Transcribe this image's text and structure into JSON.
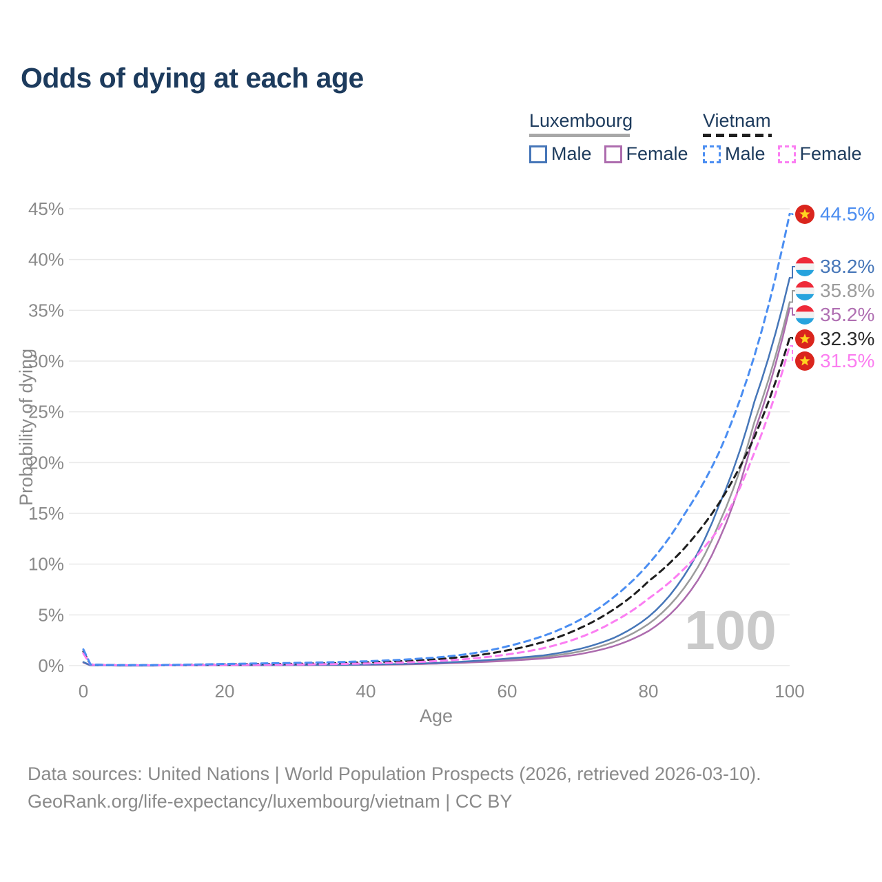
{
  "title": "Odds of dying at each age",
  "legend": {
    "groups": [
      {
        "name": "Luxembourg",
        "line_style": "solid",
        "underline_color": "#a8a8a8",
        "items": [
          {
            "label": "Male",
            "color": "#4676b8"
          },
          {
            "label": "Female",
            "color": "#ad6cae"
          }
        ]
      },
      {
        "name": "Vietnam",
        "line_style": "dashed",
        "underline_color": "#1f1f1f",
        "items": [
          {
            "label": "Male",
            "color": "#4b8ef2"
          },
          {
            "label": "Female",
            "color": "#fb7ef2"
          }
        ]
      }
    ]
  },
  "chart_data": {
    "type": "line",
    "title": "Odds of dying at each age",
    "xlabel": "Age",
    "ylabel": "Probability of dying",
    "xlim": [
      0,
      100
    ],
    "ylim": [
      0,
      45
    ],
    "grid": "horizontal",
    "legend_position": "top-right",
    "x_tick_labels": [
      "0",
      "20",
      "40",
      "60",
      "80",
      "100"
    ],
    "x_tick_values": [
      0,
      20,
      40,
      60,
      80,
      100
    ],
    "y_tick_labels": [
      "0%",
      "5%",
      "10%",
      "15%",
      "20%",
      "25%",
      "30%",
      "35%",
      "40%",
      "45%"
    ],
    "y_tick_values": [
      0,
      5,
      10,
      15,
      20,
      25,
      30,
      35,
      40,
      45
    ],
    "age_cursor_annotation": "100",
    "x": [
      0,
      1,
      5,
      10,
      15,
      20,
      25,
      30,
      35,
      40,
      45,
      50,
      55,
      60,
      65,
      70,
      75,
      80,
      85,
      90,
      95,
      100
    ],
    "series": [
      {
        "name": "Luxembourg (both sexes)",
        "country": "Luxembourg",
        "sex": "all",
        "color": "#9b9b9b",
        "dash": "solid",
        "width": 2.5,
        "values": [
          0.32,
          0.025,
          0.01,
          0.01,
          0.025,
          0.04,
          0.045,
          0.055,
          0.065,
          0.095,
          0.145,
          0.235,
          0.385,
          0.59,
          0.85,
          1.35,
          2.3,
          4.1,
          7.6,
          14.0,
          24.0,
          35.8
        ],
        "end_label": "35.8%",
        "end_value": 35.8,
        "flag": "luxembourg",
        "label_color": "#9b9b9b"
      },
      {
        "name": "Luxembourg Female",
        "country": "Luxembourg",
        "sex": "female",
        "color": "#ad6cae",
        "dash": "solid",
        "width": 2.5,
        "values": [
          0.3,
          0.02,
          0.01,
          0.01,
          0.02,
          0.03,
          0.03,
          0.04,
          0.05,
          0.08,
          0.12,
          0.2,
          0.32,
          0.48,
          0.7,
          1.1,
          1.9,
          3.4,
          6.5,
          12.4,
          23.0,
          35.2
        ],
        "end_label": "35.2%",
        "end_value": 35.2,
        "flag": "luxembourg",
        "label_color": "#b06fb2"
      },
      {
        "name": "Luxembourg Male",
        "country": "Luxembourg",
        "sex": "male",
        "color": "#4676b8",
        "dash": "solid",
        "width": 2.5,
        "values": [
          0.35,
          0.03,
          0.01,
          0.01,
          0.03,
          0.05,
          0.06,
          0.07,
          0.08,
          0.11,
          0.17,
          0.27,
          0.45,
          0.7,
          1.0,
          1.6,
          2.7,
          4.8,
          8.8,
          15.8,
          26.0,
          38.2
        ],
        "end_label": "38.2%",
        "end_value": 38.2,
        "flag": "luxembourg",
        "label_color": "#4676b8"
      },
      {
        "name": "Vietnam (both sexes)",
        "country": "Vietnam",
        "sex": "all",
        "color": "#1f1f1f",
        "dash": "dashed",
        "width": 3,
        "values": [
          1.4,
          0.1,
          0.045,
          0.04,
          0.08,
          0.12,
          0.16,
          0.19,
          0.24,
          0.32,
          0.44,
          0.63,
          0.95,
          1.5,
          2.3,
          3.6,
          5.5,
          8.3,
          11.5,
          16.0,
          22.5,
          32.3
        ],
        "end_label": "32.3%",
        "end_value": 32.3,
        "flag": "vietnam",
        "label_color": "#2b2b2b"
      },
      {
        "name": "Vietnam Female",
        "country": "Vietnam",
        "sex": "female",
        "color": "#fb7ef2",
        "dash": "dashed",
        "width": 3,
        "values": [
          1.2,
          0.09,
          0.04,
          0.03,
          0.05,
          0.07,
          0.09,
          0.11,
          0.15,
          0.21,
          0.3,
          0.45,
          0.7,
          1.1,
          1.7,
          2.7,
          4.3,
          6.6,
          9.5,
          13.5,
          21.0,
          31.5
        ],
        "end_label": "31.5%",
        "end_value": 31.5,
        "flag": "vietnam",
        "label_color": "#fb7df0"
      },
      {
        "name": "Vietnam Male",
        "country": "Vietnam",
        "sex": "male",
        "color": "#4b8ef2",
        "dash": "dashed",
        "width": 3,
        "values": [
          1.6,
          0.12,
          0.05,
          0.05,
          0.1,
          0.17,
          0.22,
          0.27,
          0.33,
          0.43,
          0.58,
          0.8,
          1.2,
          1.9,
          2.9,
          4.4,
          6.7,
          10.0,
          14.8,
          21.0,
          30.5,
          44.5
        ],
        "end_label": "44.5%",
        "end_value": 44.5,
        "flag": "vietnam",
        "label_color": "#4a8cf0"
      }
    ],
    "flag_colors": {
      "vietnam_red": "#da251d",
      "vietnam_star_yellow": "#ffd420",
      "luxembourg_red": "#ee2a39",
      "luxembourg_white": "#f2f2f2",
      "luxembourg_blue": "#27a3dd"
    }
  },
  "footer": {
    "lines": [
      "Data sources: United Nations | World Population Prospects (2026, retrieved 2026-03-10).",
      "GeoRank.org/life-expectancy/luxembourg/vietnam | CC BY"
    ]
  }
}
